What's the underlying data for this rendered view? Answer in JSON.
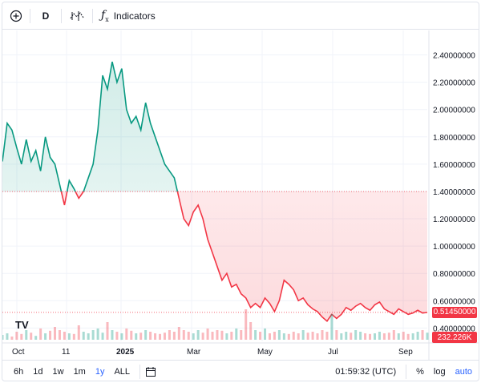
{
  "toolbar": {
    "add_icon": "plus-circle-icon",
    "interval": "D",
    "chart_type_icon": "candles-icon",
    "indicators_icon": "fx-icon",
    "indicators_label": "Indicators"
  },
  "price_axis": {
    "ticks": [
      "2.40000000",
      "2.20000000",
      "2.00000000",
      "1.80000000",
      "1.60000000",
      "1.40000000",
      "1.20000000",
      "1.00000000",
      "0.80000000",
      "0.60000000",
      "0.40000000"
    ],
    "last_price": "0.51450000",
    "volume_label": "232.226K"
  },
  "time_axis": {
    "labels": [
      "Oct",
      "11",
      "2025",
      "Mar",
      "May",
      "Jul",
      "Sep"
    ]
  },
  "bottom": {
    "ranges": [
      "6h",
      "1d",
      "1w",
      "1m",
      "1y",
      "ALL"
    ],
    "active_range": "1y",
    "time": "01:59:32 (UTC)",
    "percent": "%",
    "log": "log",
    "auto": "auto"
  },
  "logo": "TV",
  "colors": {
    "up": "#089981",
    "down": "#f23645",
    "accent": "#2962ff"
  },
  "chart_data": {
    "type": "area",
    "baseline": 1.4,
    "last": 0.5145,
    "ylim": [
      0.32,
      2.55
    ],
    "x_ticks": [
      "Oct",
      "11",
      "2025",
      "Mar",
      "May",
      "Jul",
      "Sep"
    ],
    "series": [
      {
        "values": [
          1.62,
          1.9,
          1.85,
          1.72,
          1.6,
          1.78,
          1.62,
          1.7,
          1.55,
          1.8,
          1.65,
          1.6,
          1.45,
          1.3,
          1.48,
          1.42,
          1.35,
          1.4,
          1.5,
          1.6,
          1.85,
          2.25,
          2.15,
          2.35,
          2.2,
          2.3,
          2.0,
          1.9,
          1.95,
          1.85,
          2.05,
          1.9,
          1.8,
          1.7,
          1.6,
          1.55,
          1.5,
          1.35,
          1.2,
          1.15,
          1.25,
          1.3,
          1.2,
          1.05,
          0.95,
          0.85,
          0.75,
          0.8,
          0.7,
          0.72,
          0.65,
          0.62,
          0.55,
          0.58,
          0.55,
          0.62,
          0.58,
          0.52,
          0.6,
          0.75,
          0.72,
          0.68,
          0.6,
          0.62,
          0.57,
          0.54,
          0.52,
          0.48,
          0.45,
          0.5,
          0.47,
          0.5,
          0.55,
          0.53,
          0.56,
          0.58,
          0.55,
          0.53,
          0.57,
          0.59,
          0.54,
          0.52,
          0.5,
          0.54,
          0.52,
          0.5,
          0.51,
          0.53,
          0.51,
          0.5145
        ]
      }
    ],
    "volume": [
      0.15,
      0.2,
      0.1,
      0.25,
      0.18,
      0.3,
      0.22,
      0.12,
      0.35,
      0.2,
      0.28,
      0.4,
      0.3,
      0.25,
      0.2,
      0.18,
      0.45,
      0.25,
      0.2,
      0.3,
      0.35,
      0.22,
      0.55,
      0.3,
      0.25,
      0.2,
      0.35,
      0.28,
      0.2,
      0.22,
      0.3,
      0.25,
      0.2,
      0.18,
      0.22,
      0.3,
      0.25,
      0.4,
      0.3,
      0.25,
      0.2,
      0.3,
      0.22,
      0.35,
      0.25,
      0.3,
      0.28,
      0.2,
      0.25,
      0.35,
      0.3,
      0.95,
      0.55,
      0.3,
      0.25,
      0.35,
      0.2,
      0.25,
      0.3,
      0.2,
      0.18,
      0.25,
      0.2,
      0.3,
      0.22,
      0.25,
      0.2,
      0.3,
      0.25,
      0.8,
      0.3,
      0.2,
      0.25,
      0.22,
      0.3,
      0.25,
      0.2,
      0.18,
      0.2,
      0.25,
      0.2,
      0.22,
      0.3,
      0.2,
      0.25,
      0.18,
      0.2,
      0.25,
      0.3,
      0.22
    ]
  }
}
